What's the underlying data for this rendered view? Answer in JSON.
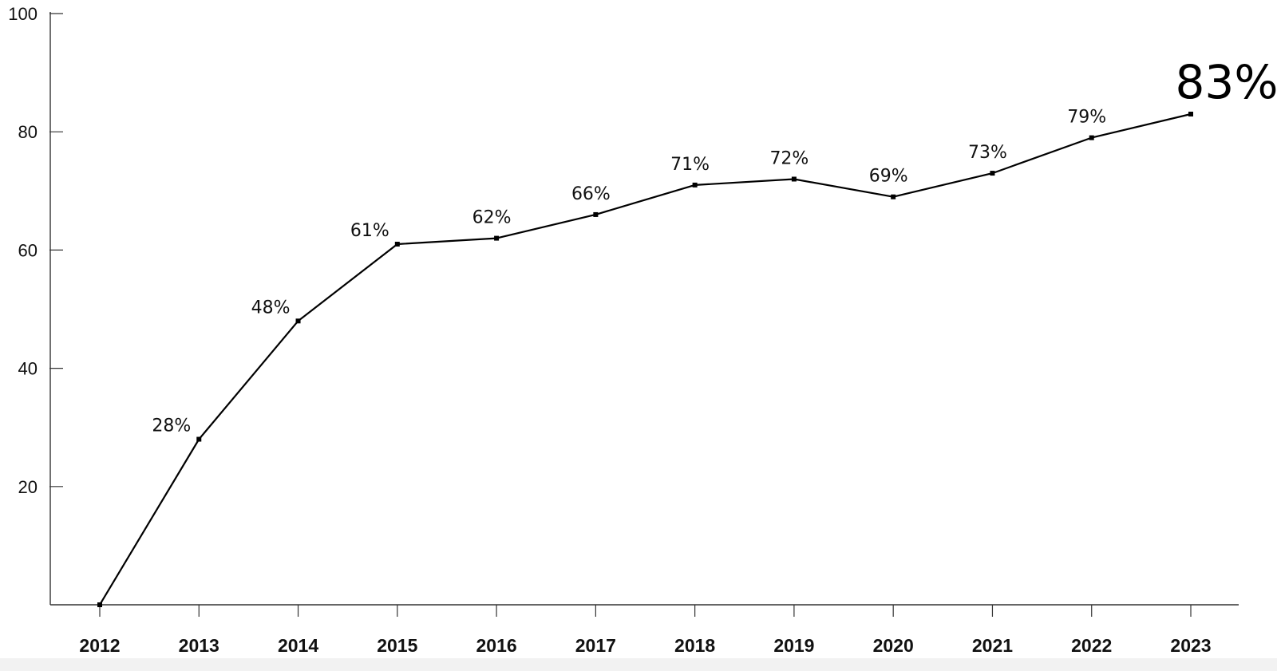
{
  "chart_data": {
    "type": "line",
    "x": [
      "2012",
      "2013",
      "2014",
      "2015",
      "2016",
      "2017",
      "2018",
      "2019",
      "2020",
      "2021",
      "2022",
      "2023"
    ],
    "series": [
      {
        "values": [
          0,
          28,
          48,
          61,
          62,
          66,
          71,
          72,
          69,
          73,
          79,
          83
        ],
        "labels": [
          "",
          "28%",
          "48%",
          "61%",
          "62%",
          "66%",
          "71%",
          "72%",
          "69%",
          "73%",
          "79%",
          "83%"
        ]
      }
    ],
    "ylim": [
      0,
      100
    ],
    "yticks": [
      {
        "value": 20,
        "label": "20"
      },
      {
        "value": 40,
        "label": "40"
      },
      {
        "value": 60,
        "label": "60"
      },
      {
        "value": 80,
        "label": "80"
      },
      {
        "value": 100,
        "label": "100"
      }
    ],
    "xlabel": "",
    "ylabel": "",
    "title": "",
    "grid": false,
    "legend": "none",
    "line_color": "#000000",
    "highlight_last_label": true
  }
}
